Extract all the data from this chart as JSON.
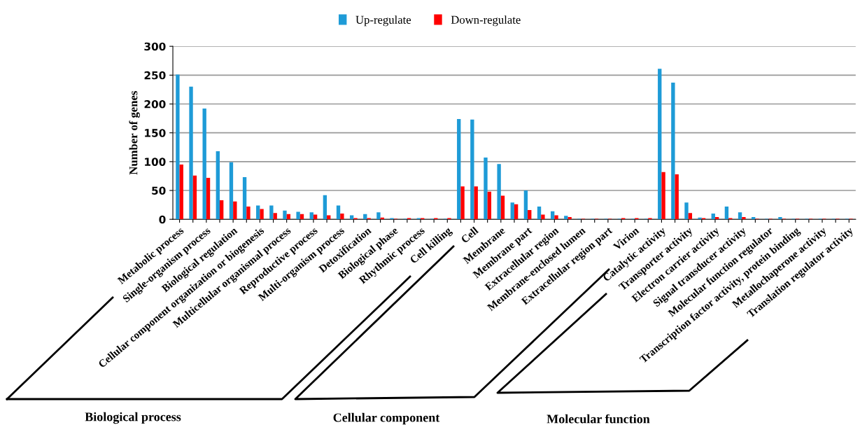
{
  "chart_data": {
    "type": "bar",
    "ylabel": "Number of genes",
    "categories": [
      "Metabolic process",
      null,
      "Single-organism process",
      null,
      "Biological regulation",
      null,
      "Cellular component organization or biogenesis",
      null,
      "Multicellular organismal process",
      null,
      "Reproductive process",
      null,
      "Multi-organism process",
      null,
      "Detoxification",
      null,
      "Biological phase",
      null,
      "Rhythmic process",
      null,
      "Cell killing",
      null,
      "Cell",
      null,
      "Membrane",
      null,
      "Membrane part",
      null,
      "Extracellular region",
      null,
      "Membrane-enclosed lumen",
      null,
      "Extracellular region part",
      null,
      "Virion",
      null,
      "Catalytic activity",
      null,
      "Transporter activity",
      null,
      "Electron carrier activity",
      null,
      "Signal transducer activity",
      null,
      "Molecular function regulator",
      null,
      "Transcription factor activity, protein binding",
      null,
      "Metallochaperone activity",
      null,
      "Translation regulator activity"
    ],
    "series": [
      {
        "name": "Up-regulate",
        "color": "#1e9bd7",
        "values": [
          251,
          230,
          192,
          118,
          99,
          73,
          24,
          24,
          15,
          13,
          12,
          42,
          24,
          7,
          9,
          12,
          2,
          1,
          2,
          1,
          1,
          174,
          173,
          107,
          96,
          29,
          50,
          22,
          14,
          6,
          1,
          1,
          1,
          1,
          1,
          1,
          261,
          237,
          29,
          3,
          10,
          22,
          12,
          4,
          1,
          4,
          1,
          1,
          1,
          1,
          1
        ]
      },
      {
        "name": "Down-regulate",
        "color": "#ff0000",
        "values": [
          95,
          76,
          72,
          33,
          31,
          22,
          18,
          11,
          9,
          9,
          8,
          7,
          10,
          2,
          2,
          3,
          1,
          2,
          2,
          2,
          2,
          57,
          57,
          48,
          41,
          26,
          16,
          8,
          7,
          4,
          1,
          1,
          1,
          2,
          2,
          2,
          82,
          78,
          11,
          2,
          4,
          2,
          4,
          1,
          1,
          1,
          1,
          1,
          1,
          1,
          1
        ]
      }
    ],
    "ylim": [
      0,
      300
    ],
    "yticks": [
      0,
      50,
      100,
      150,
      200,
      250,
      300
    ],
    "grid": "y",
    "legend": "top",
    "annotations": [
      "Biological process",
      "Cellular component",
      "Molecular function"
    ]
  }
}
